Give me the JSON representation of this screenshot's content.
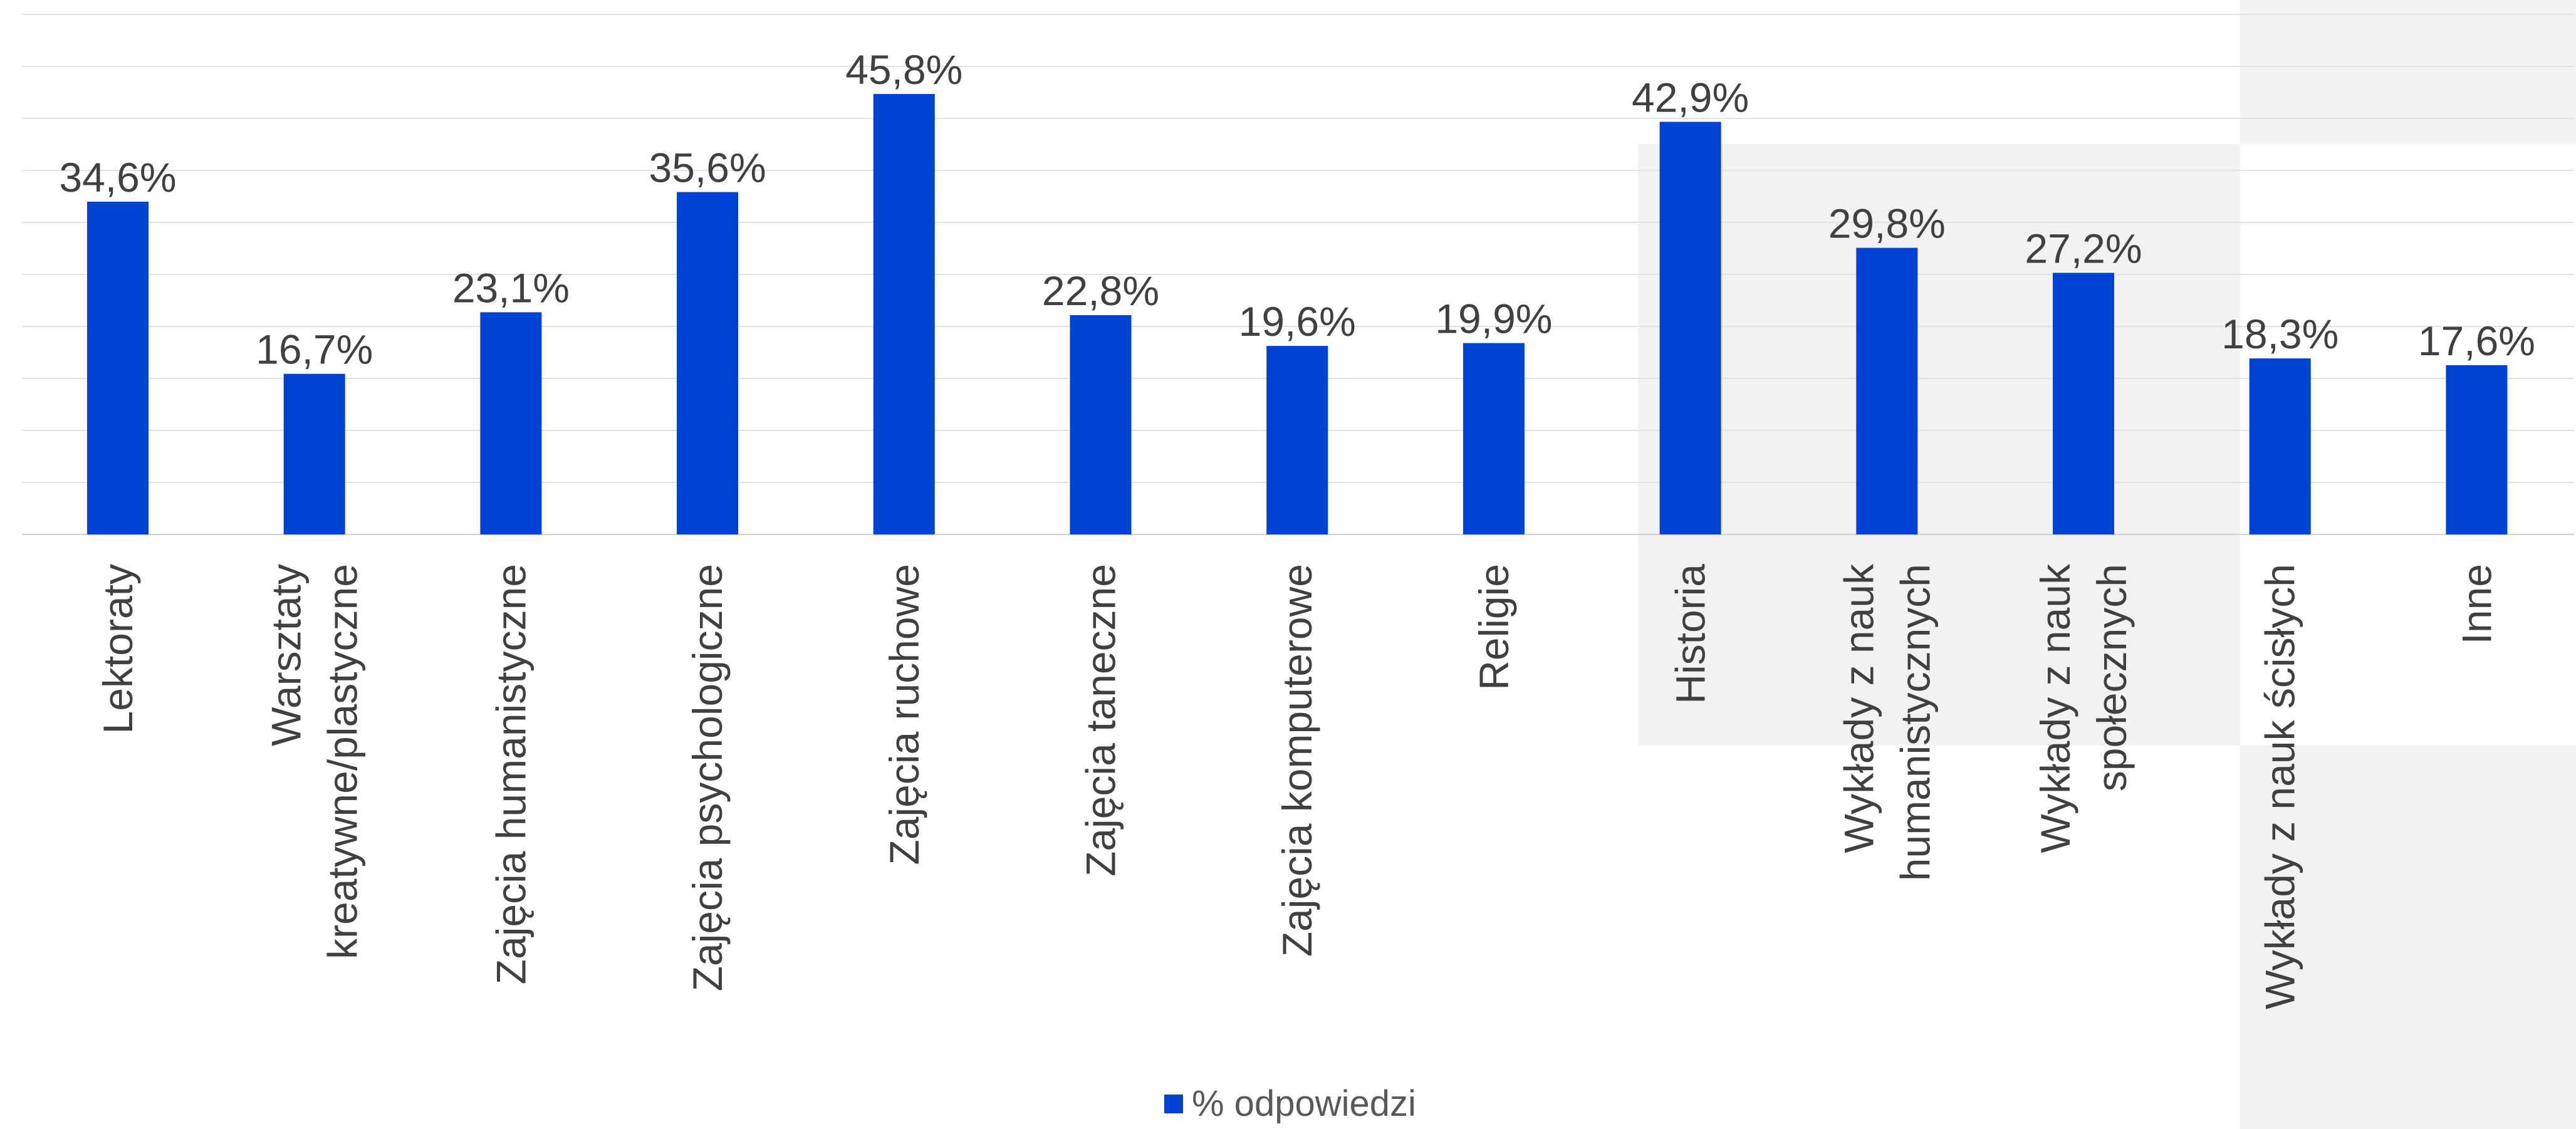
{
  "chart_data": {
    "type": "bar",
    "categories": [
      "Lektoraty",
      "Warsztaty kreatywne/plastyczne",
      "Zajęcia humanistyczne",
      "Zajęcia psychologiczne",
      "Zajęcia ruchowe",
      "Zajęcia taneczne",
      "Zajęcia komputerowe",
      "Religie",
      "Historia",
      "Wykłady z nauk humanistycznych",
      "Wykłady z nauk społecznych",
      "Wykłady z nauk ścisłych",
      "Inne"
    ],
    "category_label_lines": [
      [
        "Lektoraty"
      ],
      [
        "Warsztaty",
        "kreatywne/plastyczne"
      ],
      [
        "Zajęcia humanistyczne"
      ],
      [
        "Zajęcia psychologiczne"
      ],
      [
        "Zajęcia ruchowe"
      ],
      [
        "Zajęcia taneczne"
      ],
      [
        "Zajęcia komputerowe"
      ],
      [
        "Religie"
      ],
      [
        "Historia"
      ],
      [
        "Wykłady z nauk",
        "humanistycznych"
      ],
      [
        "Wykłady z nauk",
        "społecznych"
      ],
      [
        "Wykłady z nauk ścisłych"
      ],
      [
        "Inne"
      ]
    ],
    "series": [
      {
        "name": "% odpowiedzi",
        "values": [
          34.6,
          16.7,
          23.1,
          35.6,
          45.8,
          22.8,
          19.6,
          19.9,
          42.9,
          29.8,
          27.2,
          18.3,
          17.6
        ],
        "labels": [
          "34,6%",
          "16,7%",
          "23,1%",
          "35,6%",
          "45,8%",
          "22,8%",
          "19,6%",
          "19,9%",
          "42,9%",
          "29,8%",
          "27,2%",
          "18,3%",
          "17,6%"
        ]
      }
    ],
    "ylim": [
      0,
      50
    ],
    "grid": true,
    "legend_position": "bottom",
    "bar_color": "#0042D1"
  }
}
